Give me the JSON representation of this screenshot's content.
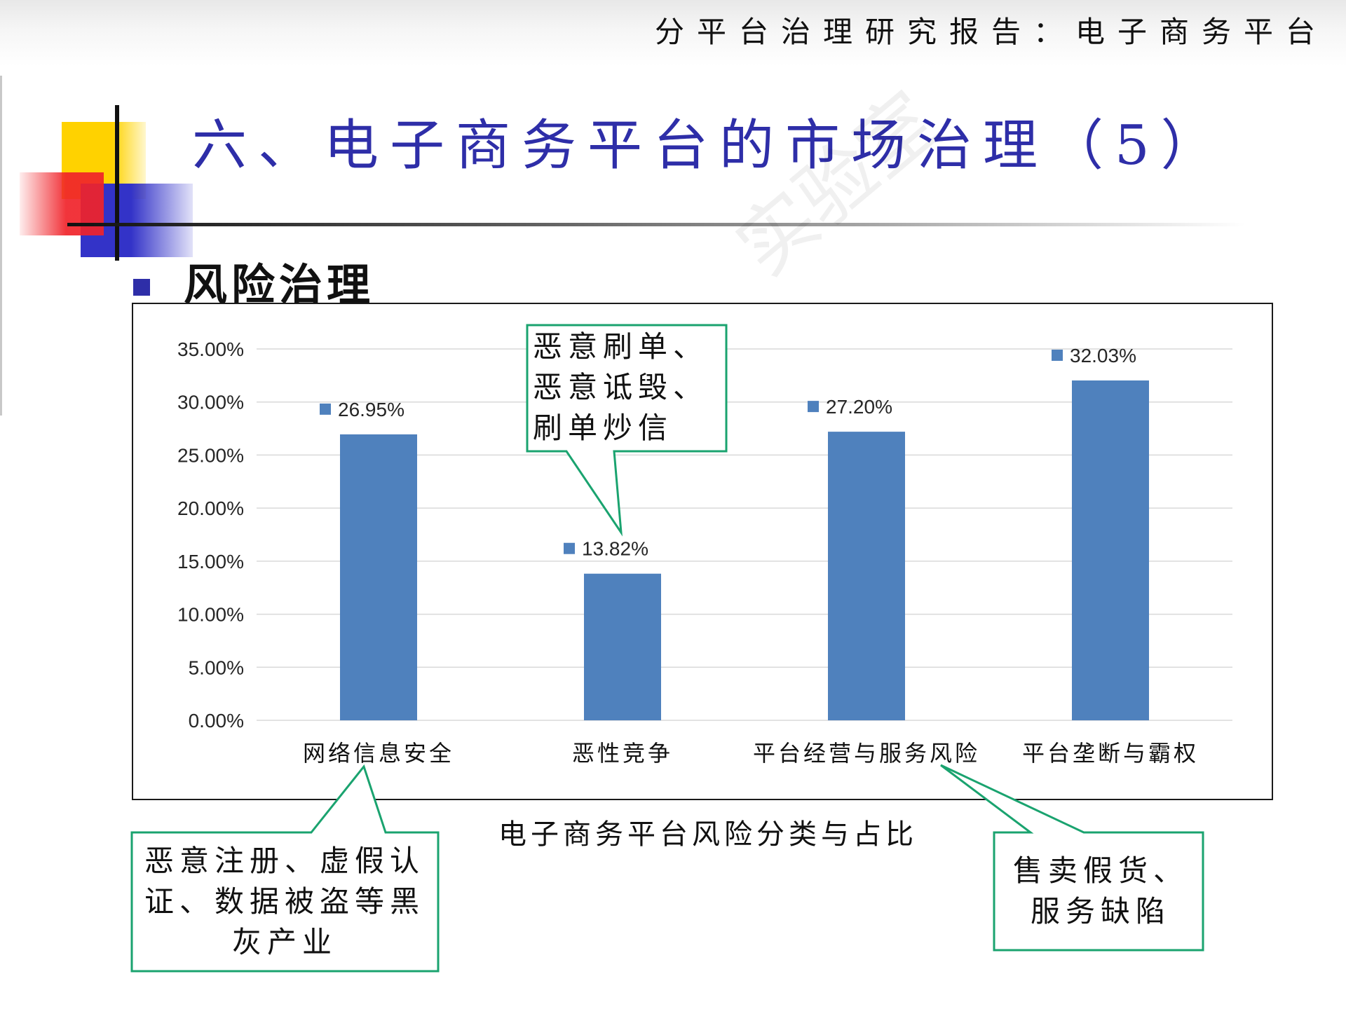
{
  "header": {
    "report_title": "分平台治理研究报告：电子商务平台"
  },
  "slide": {
    "title": "六、电子商务平台的市场治理（5）",
    "section": "风险治理"
  },
  "watermark": "实验室",
  "chart_data": {
    "type": "bar",
    "title": "电子商务平台风险分类与占比",
    "categories": [
      "网络信息安全",
      "恶性竞争",
      "平台经营与服务风险",
      "平台垄断与霸权"
    ],
    "values": [
      26.95,
      13.82,
      27.2,
      32.03
    ],
    "data_labels": [
      "26.95%",
      "13.82%",
      "27.20%",
      "32.03%"
    ],
    "ylim": [
      0,
      35
    ],
    "yticks": [
      0,
      5,
      10,
      15,
      20,
      25,
      30,
      35
    ],
    "ytick_labels": [
      "0.00%",
      "5.00%",
      "10.00%",
      "15.00%",
      "20.00%",
      "25.00%",
      "30.00%",
      "35.00%"
    ],
    "xlabel": "",
    "ylabel": "",
    "grid": true,
    "bar_color": "#4f81bd"
  },
  "callouts": {
    "c1": [
      "恶意刷单、",
      "恶意诋毁、",
      "刷单炒信"
    ],
    "c2": [
      "恶意注册、虚假认",
      "证、数据被盗等黑",
      "灰产业"
    ],
    "c3": [
      "售卖假货、",
      "服务缺陷"
    ]
  },
  "colors": {
    "title_blue": "#2e2ea8",
    "callout_border": "#1aa36f",
    "bar": "#4f81bd"
  }
}
